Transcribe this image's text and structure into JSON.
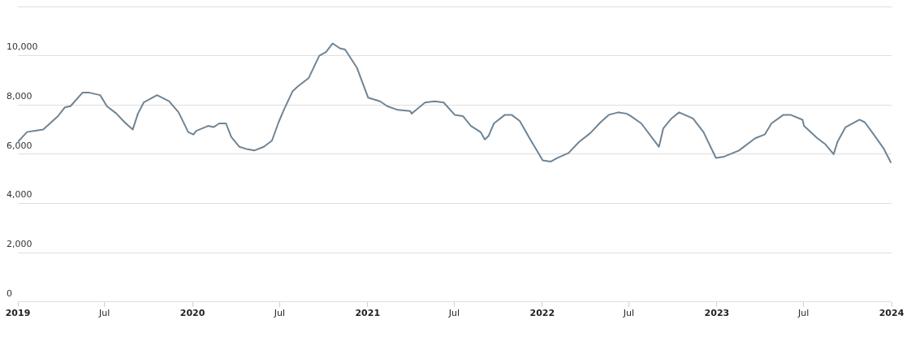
{
  "chart_data": {
    "type": "line",
    "x": [
      "2019-01-01",
      "2019-01-20",
      "2019-02-06",
      "2019-02-23",
      "2019-03-09",
      "2019-03-26",
      "2019-04-09",
      "2019-04-21",
      "2019-05-16",
      "2019-05-30",
      "2019-06-22",
      "2019-07-06",
      "2019-07-26",
      "2019-08-12",
      "2019-08-29",
      "2019-09-09",
      "2019-09-21",
      "2019-10-19",
      "2019-11-13",
      "2019-12-03",
      "2019-12-23",
      "2020-01-03",
      "2020-01-09",
      "2020-02-03",
      "2020-02-14",
      "2020-02-26",
      "2020-03-11",
      "2020-03-22",
      "2020-04-08",
      "2020-04-25",
      "2020-05-09",
      "2020-05-29",
      "2020-06-15",
      "2020-06-29",
      "2020-07-11",
      "2020-07-28",
      "2020-08-08",
      "2020-08-31",
      "2020-09-22",
      "2020-10-06",
      "2020-10-20",
      "2020-11-04",
      "2020-11-15",
      "2020-12-10",
      "2021-01-02",
      "2021-01-27",
      "2021-02-11",
      "2021-03-05",
      "2021-03-31",
      "2021-04-03",
      "2021-05-01",
      "2021-05-21",
      "2021-06-09",
      "2021-07-02",
      "2021-07-19",
      "2021-08-05",
      "2021-08-25",
      "2021-09-03",
      "2021-09-11",
      "2021-09-22",
      "2021-10-15",
      "2021-10-29",
      "2021-11-15",
      "2021-12-07",
      "2022-01-02",
      "2022-01-19",
      "2022-02-02",
      "2022-02-25",
      "2022-03-19",
      "2022-04-11",
      "2022-05-03",
      "2022-05-20",
      "2022-06-09",
      "2022-06-26",
      "2022-07-05",
      "2022-07-27",
      "2022-09-02",
      "2022-09-11",
      "2022-09-28",
      "2022-10-14",
      "2022-11-12",
      "2022-12-04",
      "2022-12-30",
      "2023-01-16",
      "2023-02-16",
      "2023-03-22",
      "2023-04-11",
      "2023-04-25",
      "2023-05-20",
      "2023-06-04",
      "2023-06-29",
      "2023-07-02",
      "2023-07-30",
      "2023-08-16",
      "2023-09-02",
      "2023-09-10",
      "2023-09-27",
      "2023-10-26",
      "2023-11-06",
      "2023-11-23",
      "2023-12-15",
      "2023-12-31"
    ],
    "series": [
      {
        "color": "#6f8495",
        "values": [
          6500,
          6900,
          6950,
          7000,
          7250,
          7550,
          7900,
          7950,
          8500,
          8500,
          8400,
          7950,
          7650,
          7300,
          7000,
          7650,
          8100,
          8400,
          8150,
          7700,
          6900,
          6800,
          6950,
          7150,
          7100,
          7250,
          7250,
          6700,
          6300,
          6200,
          6150,
          6300,
          6550,
          7300,
          7850,
          8550,
          8750,
          9100,
          10000,
          10150,
          10500,
          10300,
          10250,
          9500,
          8300,
          8150,
          7950,
          7800,
          7750,
          7650,
          8100,
          8150,
          8100,
          7600,
          7550,
          7150,
          6900,
          6600,
          6750,
          7250,
          7600,
          7600,
          7350,
          6600,
          5750,
          5700,
          5850,
          6050,
          6500,
          6850,
          7300,
          7600,
          7700,
          7650,
          7550,
          7250,
          6300,
          7050,
          7450,
          7700,
          7450,
          6900,
          5850,
          5900,
          6150,
          6650,
          6800,
          7250,
          7600,
          7600,
          7400,
          7150,
          6650,
          6400,
          6000,
          6500,
          7100,
          7400,
          7300,
          6850,
          6250,
          5650
        ]
      }
    ],
    "xlim": [
      "2019-01-01",
      "2024-01-01"
    ],
    "xticks": [
      {
        "value": "2019-01-01",
        "label": "2019"
      },
      {
        "value": "2019-07-01",
        "label": "Jul"
      },
      {
        "value": "2020-01-01",
        "label": "2020"
      },
      {
        "value": "2020-07-01",
        "label": "Jul"
      },
      {
        "value": "2021-01-01",
        "label": "2021"
      },
      {
        "value": "2021-07-01",
        "label": "Jul"
      },
      {
        "value": "2022-01-01",
        "label": "2022"
      },
      {
        "value": "2022-07-01",
        "label": "Jul"
      },
      {
        "value": "2023-01-01",
        "label": "2023"
      },
      {
        "value": "2023-07-01",
        "label": "Jul"
      },
      {
        "value": "2024-01-01",
        "label": "2024"
      }
    ],
    "ylim": [
      0,
      12000
    ],
    "yticks": [
      {
        "value": 0,
        "label": "0"
      },
      {
        "value": 2000,
        "label": "2,000"
      },
      {
        "value": 4000,
        "label": "4,000"
      },
      {
        "value": 6000,
        "label": "6,000"
      },
      {
        "value": 8000,
        "label": "8,000"
      },
      {
        "value": 10000,
        "label": "10,000"
      },
      {
        "value": 12000,
        "label": null
      }
    ],
    "grid": "y",
    "legend": false,
    "marker": "none",
    "line_style": "solid"
  }
}
